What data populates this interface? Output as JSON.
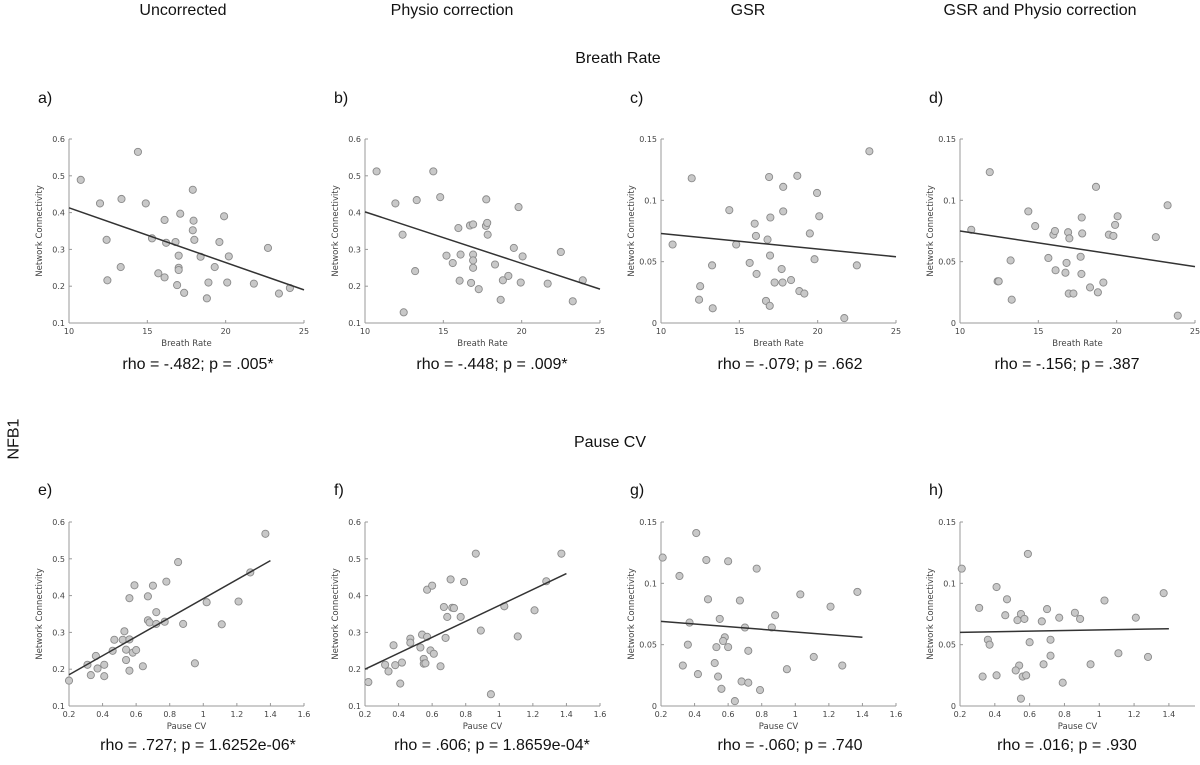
{
  "columns": [
    "Uncorrected",
    "Physio correction",
    "GSR",
    "GSR and Physio correction"
  ],
  "rows": [
    "Breath Rate",
    "Pause CV"
  ],
  "side_label": "NFB1",
  "chart_data": [
    {
      "label": "a)",
      "type": "scatter",
      "xlabel": "Breath Rate",
      "ylabel": "Network Connectivity",
      "xlim": [
        10,
        25
      ],
      "ylim": [
        0.1,
        0.6
      ],
      "xticks": [
        10,
        15,
        20,
        25
      ],
      "yticks": [
        0.1,
        0.2,
        0.3,
        0.4,
        0.5,
        0.6
      ],
      "stat": "rho = -.482; p = .005*",
      "fit": [
        [
          10,
          0.413
        ],
        [
          25,
          0.19
        ]
      ],
      "points": [
        [
          10.75,
          0.489
        ],
        [
          14.4,
          0.565
        ],
        [
          11.98,
          0.425
        ],
        [
          13.35,
          0.437
        ],
        [
          14.9,
          0.425
        ],
        [
          12.4,
          0.326
        ],
        [
          12.45,
          0.216
        ],
        [
          13.3,
          0.252
        ],
        [
          17.9,
          0.462
        ],
        [
          16.1,
          0.38
        ],
        [
          17.1,
          0.397
        ],
        [
          17.95,
          0.378
        ],
        [
          17.9,
          0.352
        ],
        [
          18.0,
          0.326
        ],
        [
          19.9,
          0.39
        ],
        [
          15.3,
          0.33
        ],
        [
          16.2,
          0.318
        ],
        [
          16.8,
          0.32
        ],
        [
          17.0,
          0.283
        ],
        [
          17.0,
          0.25
        ],
        [
          17.0,
          0.244
        ],
        [
          15.7,
          0.235
        ],
        [
          16.1,
          0.224
        ],
        [
          16.9,
          0.203
        ],
        [
          17.35,
          0.182
        ],
        [
          18.4,
          0.28
        ],
        [
          19.3,
          0.252
        ],
        [
          19.6,
          0.32
        ],
        [
          20.2,
          0.281
        ],
        [
          18.9,
          0.21
        ],
        [
          20.1,
          0.21
        ],
        [
          18.8,
          0.167
        ],
        [
          21.8,
          0.207
        ],
        [
          22.7,
          0.304
        ],
        [
          23.4,
          0.18
        ],
        [
          24.1,
          0.195
        ]
      ]
    },
    {
      "label": "b)",
      "type": "scatter",
      "xlabel": "Breath Rate",
      "ylabel": "Network Connectivity",
      "xlim": [
        10,
        25
      ],
      "ylim": [
        0.1,
        0.6
      ],
      "xticks": [
        10,
        15,
        20,
        25
      ],
      "yticks": [
        0.1,
        0.2,
        0.3,
        0.4,
        0.5,
        0.6
      ],
      "stat": "rho = -.448; p = .009*",
      "fit": [
        [
          10,
          0.402
        ],
        [
          25,
          0.192
        ]
      ],
      "points": [
        [
          10.74,
          0.512
        ],
        [
          14.36,
          0.512
        ],
        [
          11.94,
          0.425
        ],
        [
          13.3,
          0.434
        ],
        [
          14.8,
          0.442
        ],
        [
          12.4,
          0.34
        ],
        [
          13.2,
          0.241
        ],
        [
          12.47,
          0.129
        ],
        [
          15.2,
          0.283
        ],
        [
          15.6,
          0.263
        ],
        [
          15.96,
          0.358
        ],
        [
          16.1,
          0.286
        ],
        [
          16.04,
          0.215
        ],
        [
          16.7,
          0.365
        ],
        [
          16.9,
          0.368
        ],
        [
          16.9,
          0.286
        ],
        [
          16.9,
          0.27
        ],
        [
          16.9,
          0.25
        ],
        [
          16.77,
          0.209
        ],
        [
          17.26,
          0.192
        ],
        [
          17.74,
          0.436
        ],
        [
          17.72,
          0.364
        ],
        [
          17.8,
          0.372
        ],
        [
          17.83,
          0.34
        ],
        [
          18.3,
          0.259
        ],
        [
          18.66,
          0.163
        ],
        [
          18.8,
          0.216
        ],
        [
          19.15,
          0.228
        ],
        [
          19.5,
          0.304
        ],
        [
          19.8,
          0.415
        ],
        [
          20.06,
          0.281
        ],
        [
          19.94,
          0.21
        ],
        [
          21.66,
          0.207
        ],
        [
          22.5,
          0.293
        ],
        [
          23.26,
          0.159
        ],
        [
          23.9,
          0.216
        ]
      ]
    },
    {
      "label": "c)",
      "type": "scatter",
      "xlabel": "Breath Rate",
      "ylabel": "Network Connectivity",
      "xlim": [
        10,
        25
      ],
      "ylim": [
        0,
        0.15
      ],
      "xticks": [
        10,
        15,
        20,
        25
      ],
      "yticks": [
        0,
        0.05,
        0.1,
        0.15
      ],
      "stat": "rho = -.079; p = .662",
      "fit": [
        [
          10,
          0.073
        ],
        [
          25,
          0.054
        ]
      ],
      "points": [
        [
          10.74,
          0.064
        ],
        [
          11.96,
          0.118
        ],
        [
          12.43,
          0.019
        ],
        [
          12.5,
          0.03
        ],
        [
          13.26,
          0.047
        ],
        [
          13.3,
          0.012
        ],
        [
          14.36,
          0.092
        ],
        [
          14.8,
          0.064
        ],
        [
          15.66,
          0.049
        ],
        [
          15.98,
          0.081
        ],
        [
          16.06,
          0.071
        ],
        [
          16.1,
          0.04
        ],
        [
          16.8,
          0.068
        ],
        [
          16.7,
          0.018
        ],
        [
          16.9,
          0.119
        ],
        [
          16.98,
          0.086
        ],
        [
          16.96,
          0.055
        ],
        [
          16.94,
          0.014
        ],
        [
          17.25,
          0.033
        ],
        [
          17.7,
          0.044
        ],
        [
          17.76,
          0.033
        ],
        [
          17.8,
          0.111
        ],
        [
          17.8,
          0.091
        ],
        [
          18.3,
          0.035
        ],
        [
          18.7,
          0.12
        ],
        [
          18.83,
          0.026
        ],
        [
          19.15,
          0.024
        ],
        [
          19.5,
          0.073
        ],
        [
          19.8,
          0.052
        ],
        [
          19.96,
          0.106
        ],
        [
          20.1,
          0.087
        ],
        [
          21.7,
          0.004
        ],
        [
          22.5,
          0.047
        ],
        [
          23.3,
          0.14
        ]
      ]
    },
    {
      "label": "d)",
      "type": "scatter",
      "xlabel": "Breath Rate",
      "ylabel": "Network Connectivity",
      "xlim": [
        10,
        25
      ],
      "ylim": [
        0,
        0.15
      ],
      "xticks": [
        10,
        15,
        20,
        25
      ],
      "yticks": [
        0,
        0.05,
        0.1,
        0.15
      ],
      "stat": "rho = -.156; p = .387",
      "fit": [
        [
          10,
          0.075
        ],
        [
          25,
          0.046
        ]
      ],
      "points": [
        [
          10.72,
          0.076
        ],
        [
          11.9,
          0.123
        ],
        [
          12.4,
          0.034
        ],
        [
          12.47,
          0.034
        ],
        [
          13.23,
          0.051
        ],
        [
          13.3,
          0.019
        ],
        [
          14.36,
          0.091
        ],
        [
          14.8,
          0.079
        ],
        [
          15.64,
          0.053
        ],
        [
          15.96,
          0.072
        ],
        [
          16.06,
          0.075
        ],
        [
          16.1,
          0.043
        ],
        [
          16.73,
          0.041
        ],
        [
          16.8,
          0.049
        ],
        [
          16.9,
          0.074
        ],
        [
          16.98,
          0.069
        ],
        [
          16.94,
          0.024
        ],
        [
          17.24,
          0.024
        ],
        [
          17.7,
          0.054
        ],
        [
          17.75,
          0.04
        ],
        [
          17.77,
          0.086
        ],
        [
          17.8,
          0.073
        ],
        [
          18.3,
          0.029
        ],
        [
          18.68,
          0.111
        ],
        [
          18.8,
          0.025
        ],
        [
          19.15,
          0.033
        ],
        [
          19.5,
          0.072
        ],
        [
          19.79,
          0.071
        ],
        [
          19.9,
          0.08
        ],
        [
          20.06,
          0.087
        ],
        [
          22.5,
          0.07
        ],
        [
          23.25,
          0.096
        ],
        [
          23.9,
          0.006
        ]
      ]
    },
    {
      "label": "e)",
      "type": "scatter",
      "xlabel": "Pause CV",
      "ylabel": "Network Connectivity",
      "xlim": [
        0.2,
        1.6
      ],
      "ylim": [
        0.1,
        0.6
      ],
      "xticks": [
        0.2,
        0.4,
        0.6,
        0.8,
        1,
        1.2,
        1.4,
        1.6
      ],
      "yticks": [
        0.1,
        0.2,
        0.3,
        0.4,
        0.5,
        0.6
      ],
      "stat": "rho = .727; p = 1.6252e-06*",
      "fit": [
        [
          0.2,
          0.185
        ],
        [
          1.4,
          0.495
        ]
      ],
      "points": [
        [
          0.2,
          0.169
        ],
        [
          0.31,
          0.212
        ],
        [
          0.33,
          0.184
        ],
        [
          0.36,
          0.236
        ],
        [
          0.37,
          0.202
        ],
        [
          0.41,
          0.212
        ],
        [
          0.41,
          0.181
        ],
        [
          0.47,
          0.28
        ],
        [
          0.46,
          0.25
        ],
        [
          0.52,
          0.28
        ],
        [
          0.53,
          0.303
        ],
        [
          0.54,
          0.253
        ],
        [
          0.54,
          0.225
        ],
        [
          0.56,
          0.281
        ],
        [
          0.56,
          0.196
        ],
        [
          0.56,
          0.393
        ],
        [
          0.59,
          0.428
        ],
        [
          0.58,
          0.245
        ],
        [
          0.6,
          0.252
        ],
        [
          0.64,
          0.208
        ],
        [
          0.67,
          0.398
        ],
        [
          0.67,
          0.333
        ],
        [
          0.68,
          0.327
        ],
        [
          0.7,
          0.427
        ],
        [
          0.72,
          0.323
        ],
        [
          0.72,
          0.355
        ],
        [
          0.77,
          0.329
        ],
        [
          0.78,
          0.438
        ],
        [
          0.85,
          0.491
        ],
        [
          0.88,
          0.323
        ],
        [
          0.95,
          0.216
        ],
        [
          1.02,
          0.382
        ],
        [
          1.11,
          0.322
        ],
        [
          1.21,
          0.384
        ],
        [
          1.28,
          0.463
        ],
        [
          1.37,
          0.568
        ]
      ]
    },
    {
      "label": "f)",
      "type": "scatter",
      "xlabel": "Pause CV",
      "ylabel": "Network Connectivity",
      "xlim": [
        0.2,
        1.6
      ],
      "ylim": [
        0.1,
        0.6
      ],
      "xticks": [
        0.2,
        0.4,
        0.6,
        0.8,
        1,
        1.2,
        1.4,
        1.6
      ],
      "yticks": [
        0.1,
        0.2,
        0.3,
        0.4,
        0.5,
        0.6
      ],
      "stat": "rho = .606; p = 1.8659e-04*",
      "fit": [
        [
          0.2,
          0.2
        ],
        [
          1.4,
          0.46
        ]
      ],
      "points": [
        [
          0.22,
          0.165
        ],
        [
          0.32,
          0.212
        ],
        [
          0.34,
          0.194
        ],
        [
          0.37,
          0.265
        ],
        [
          0.38,
          0.211
        ],
        [
          0.42,
          0.218
        ],
        [
          0.41,
          0.161
        ],
        [
          0.47,
          0.283
        ],
        [
          0.47,
          0.272
        ],
        [
          0.53,
          0.259
        ],
        [
          0.54,
          0.294
        ],
        [
          0.55,
          0.228
        ],
        [
          0.55,
          0.215
        ],
        [
          0.56,
          0.216
        ],
        [
          0.57,
          0.288
        ],
        [
          0.57,
          0.416
        ],
        [
          0.59,
          0.251
        ],
        [
          0.6,
          0.427
        ],
        [
          0.61,
          0.242
        ],
        [
          0.65,
          0.208
        ],
        [
          0.67,
          0.369
        ],
        [
          0.68,
          0.285
        ],
        [
          0.69,
          0.342
        ],
        [
          0.71,
          0.444
        ],
        [
          0.72,
          0.367
        ],
        [
          0.73,
          0.366
        ],
        [
          0.77,
          0.342
        ],
        [
          0.79,
          0.437
        ],
        [
          0.86,
          0.514
        ],
        [
          0.89,
          0.305
        ],
        [
          0.95,
          0.132
        ],
        [
          1.03,
          0.371
        ],
        [
          1.11,
          0.289
        ],
        [
          1.21,
          0.36
        ],
        [
          1.28,
          0.439
        ],
        [
          1.37,
          0.514
        ]
      ]
    },
    {
      "label": "g)",
      "type": "scatter",
      "xlabel": "Pause CV",
      "ylabel": "Network Connectivity",
      "xlim": [
        0.2,
        1.6
      ],
      "ylim": [
        0,
        0.15
      ],
      "xticks": [
        0.2,
        0.4,
        0.6,
        0.8,
        1,
        1.2,
        1.4,
        1.6
      ],
      "yticks": [
        0,
        0.05,
        0.1,
        0.15
      ],
      "stat": "rho = -.060; p = .740",
      "fit": [
        [
          0.2,
          0.069
        ],
        [
          1.4,
          0.056
        ]
      ],
      "points": [
        [
          0.21,
          0.121
        ],
        [
          0.41,
          0.141
        ],
        [
          0.31,
          0.106
        ],
        [
          0.47,
          0.119
        ],
        [
          0.6,
          0.118
        ],
        [
          0.77,
          0.112
        ],
        [
          0.48,
          0.087
        ],
        [
          0.67,
          0.086
        ],
        [
          1.03,
          0.091
        ],
        [
          1.21,
          0.081
        ],
        [
          1.37,
          0.093
        ],
        [
          0.88,
          0.074
        ],
        [
          0.55,
          0.071
        ],
        [
          0.37,
          0.068
        ],
        [
          0.7,
          0.064
        ],
        [
          0.86,
          0.064
        ],
        [
          0.58,
          0.056
        ],
        [
          0.57,
          0.053
        ],
        [
          0.36,
          0.05
        ],
        [
          0.53,
          0.048
        ],
        [
          0.6,
          0.048
        ],
        [
          0.72,
          0.045
        ],
        [
          0.33,
          0.033
        ],
        [
          0.52,
          0.035
        ],
        [
          0.42,
          0.026
        ],
        [
          0.54,
          0.024
        ],
        [
          0.95,
          0.03
        ],
        [
          1.11,
          0.04
        ],
        [
          1.28,
          0.033
        ],
        [
          0.68,
          0.02
        ],
        [
          0.72,
          0.019
        ],
        [
          0.56,
          0.014
        ],
        [
          0.79,
          0.013
        ],
        [
          0.64,
          0.004
        ]
      ]
    },
    {
      "label": "h)",
      "type": "scatter",
      "xlabel": "Pause CV",
      "ylabel": "Network Connectivity",
      "xlim": [
        0.2,
        1.55
      ],
      "ylim": [
        0,
        0.15
      ],
      "xticks": [
        0.2,
        0.4,
        0.6,
        0.8,
        1,
        1.2,
        1.4
      ],
      "yticks": [
        0,
        0.05,
        0.1,
        0.15
      ],
      "stat": "rho = .016; p = .930",
      "fit": [
        [
          0.2,
          0.06
        ],
        [
          1.4,
          0.063
        ]
      ],
      "points": [
        [
          0.21,
          0.112
        ],
        [
          0.59,
          0.124
        ],
        [
          0.41,
          0.097
        ],
        [
          0.31,
          0.08
        ],
        [
          0.47,
          0.087
        ],
        [
          0.46,
          0.074
        ],
        [
          0.55,
          0.075
        ],
        [
          0.53,
          0.07
        ],
        [
          0.57,
          0.071
        ],
        [
          0.7,
          0.079
        ],
        [
          0.67,
          0.069
        ],
        [
          0.77,
          0.072
        ],
        [
          0.86,
          0.076
        ],
        [
          0.89,
          0.071
        ],
        [
          1.03,
          0.086
        ],
        [
          1.21,
          0.072
        ],
        [
          1.37,
          0.092
        ],
        [
          0.36,
          0.054
        ],
        [
          0.37,
          0.05
        ],
        [
          0.6,
          0.052
        ],
        [
          0.72,
          0.054
        ],
        [
          0.72,
          0.041
        ],
        [
          0.68,
          0.034
        ],
        [
          0.95,
          0.034
        ],
        [
          1.11,
          0.043
        ],
        [
          1.28,
          0.04
        ],
        [
          0.54,
          0.033
        ],
        [
          0.52,
          0.029
        ],
        [
          0.33,
          0.024
        ],
        [
          0.41,
          0.025
        ],
        [
          0.56,
          0.024
        ],
        [
          0.58,
          0.025
        ],
        [
          0.79,
          0.019
        ],
        [
          0.55,
          0.006
        ]
      ]
    }
  ]
}
